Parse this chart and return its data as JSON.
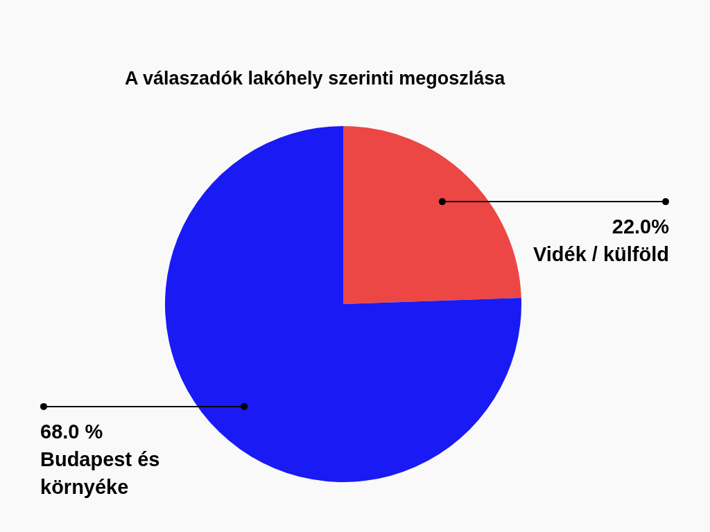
{
  "chart_data": {
    "type": "pie",
    "title": "A válaszadók lakóhely szerinti megoszlása",
    "categories": [
      "Vidék / külföld",
      "Budapest és környéke"
    ],
    "values": [
      22.0,
      68.0
    ],
    "value_labels": [
      "22.0%",
      "68.0 %"
    ],
    "colors": [
      "#ec4744",
      "#1a1af5"
    ],
    "legend": false
  }
}
